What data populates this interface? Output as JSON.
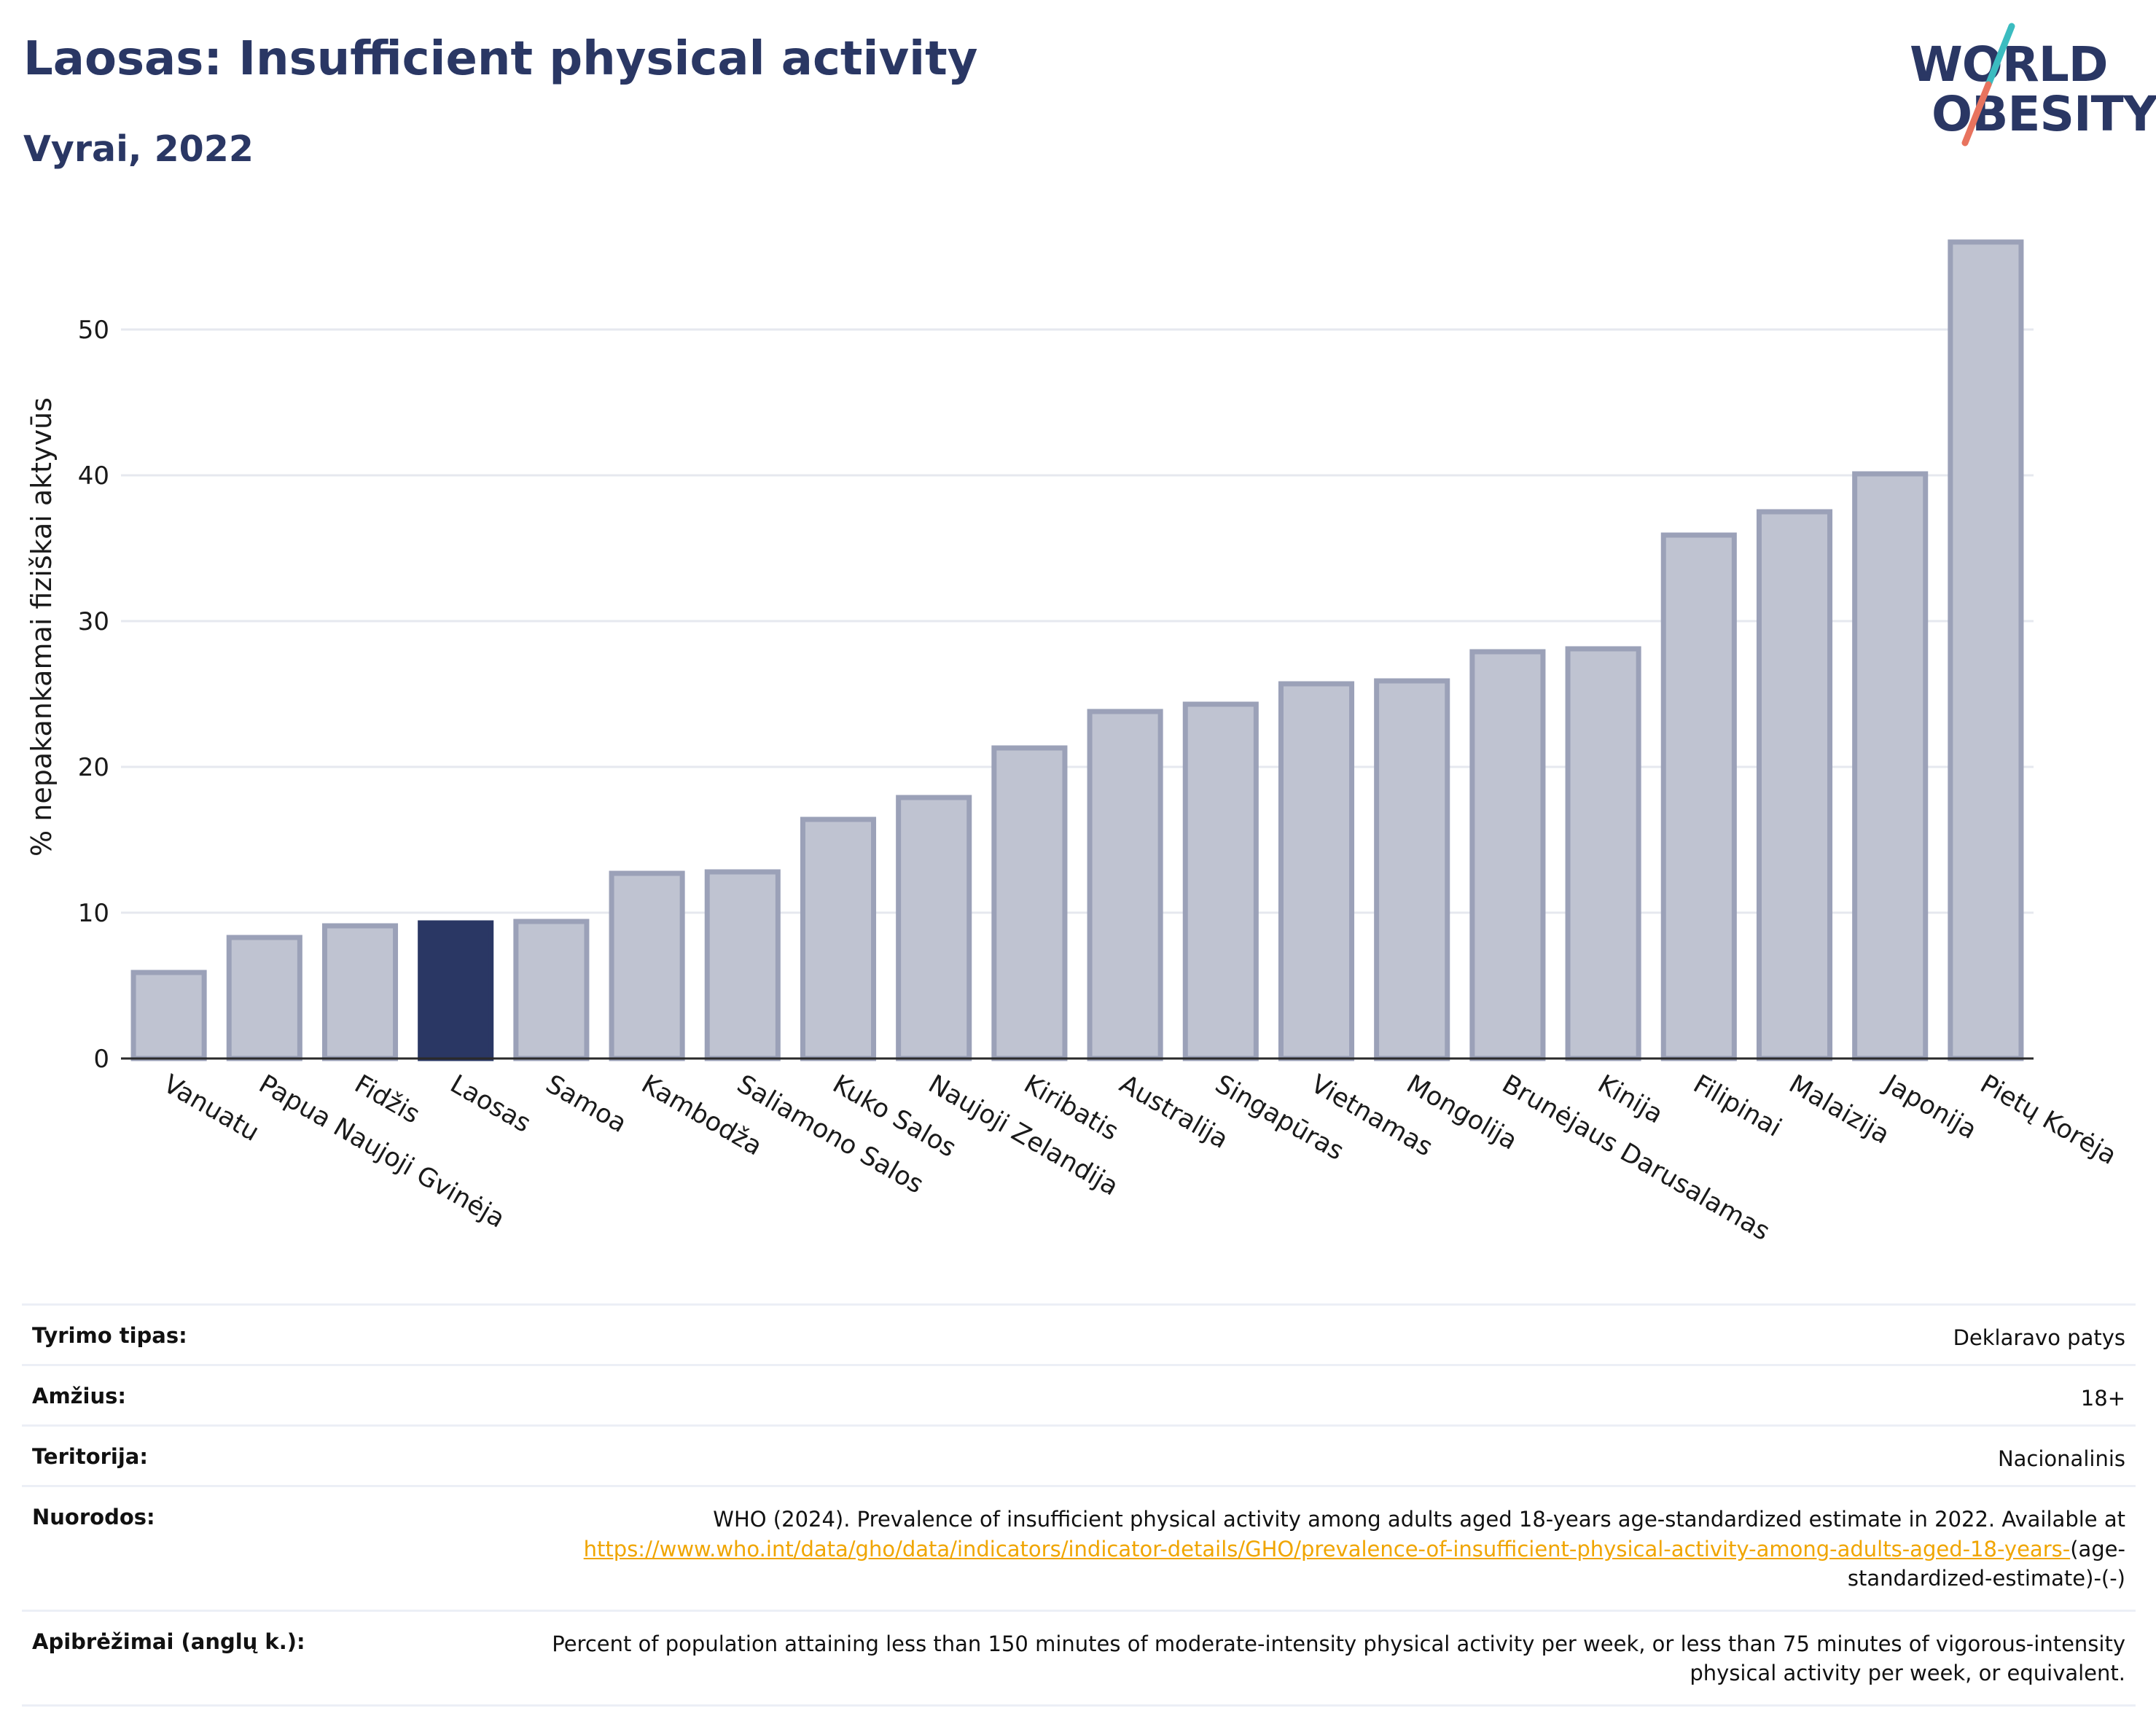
{
  "header": {
    "title": "Laosas: Insufficient physical activity",
    "subtitle": "Vyrai, 2022",
    "logo_line1": "WORLD",
    "logo_line2": "OBESITY"
  },
  "colors": {
    "title": "#2a3764",
    "bar": "#bfc3d1",
    "bar_stroke": "#9ba1b8",
    "highlight": "#2a3764",
    "logo_teal": "#3bbcc0",
    "logo_coral": "#e8735e",
    "link": "#f0a500"
  },
  "chart_data": {
    "type": "bar",
    "ylabel": "% nepakankamai fiziškai aktyvūs",
    "ylim": [
      0,
      58
    ],
    "yticks": [
      0,
      10,
      20,
      30,
      40,
      50
    ],
    "grid": true,
    "highlight": "Laosas",
    "categories": [
      "Vanuatu",
      "Papua Naujoji Gvinėja",
      "Fidžis",
      "Laosas",
      "Samoa",
      "Kambodža",
      "Saliamono Salos",
      "Kuko Salos",
      "Naujoji Zelandija",
      "Kiribatis",
      "Australija",
      "Singapūras",
      "Vietnamas",
      "Mongolija",
      "Brunėjaus Darusalamas",
      "Kinija",
      "Filipinai",
      "Malaizija",
      "Japonija",
      "Pietų Korėja"
    ],
    "values": [
      5.9,
      8.3,
      9.1,
      9.3,
      9.4,
      12.7,
      12.8,
      16.4,
      17.9,
      21.3,
      23.8,
      24.3,
      25.7,
      25.9,
      27.9,
      28.1,
      35.9,
      37.5,
      40.1,
      56.0
    ]
  },
  "info": {
    "rows": [
      {
        "label": "Tyrimo tipas:",
        "value": "Deklaravo patys"
      },
      {
        "label": "Amžius:",
        "value": "18+"
      },
      {
        "label": "Teritorija:",
        "value": "Nacionalinis"
      }
    ],
    "references_label": "Nuorodos:",
    "references_text": "WHO (2024). Prevalence of insufficient physical activity among adults aged 18-years age-standardized estimate in 2022. Available at",
    "references_link": "https://www.who.int/data/gho/data/indicators/indicator-details/GHO/prevalence-of-insufficient-physical-activity-among-adults-aged-18-years-",
    "references_suffix": "(age-standardized-estimate)-(-)",
    "definitions_label": "Apibrėžimai (anglų k.):",
    "definitions_text": "Percent of population attaining less than 150 minutes of moderate-intensity physical activity per week, or less than 75 minutes of vigorous-intensity physical activity per week, or equivalent."
  }
}
